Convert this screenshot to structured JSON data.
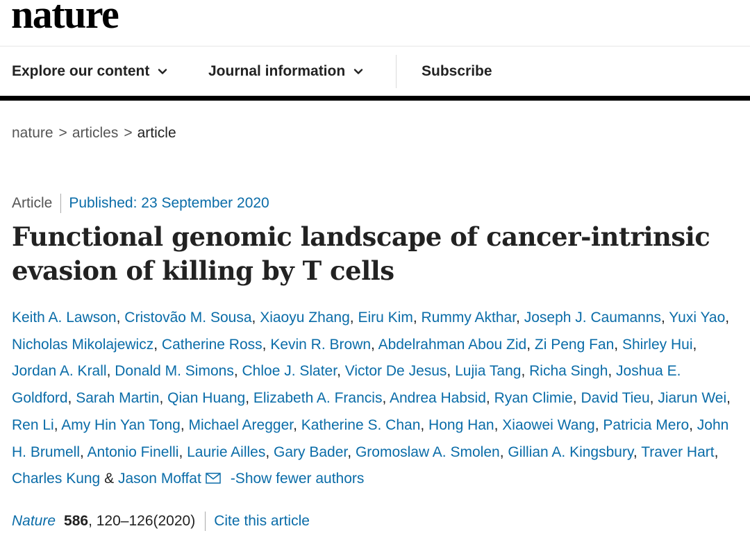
{
  "header": {
    "logo": "nature"
  },
  "nav": {
    "items": [
      {
        "label": "Explore our content",
        "has_dropdown": true
      },
      {
        "label": "Journal information",
        "has_dropdown": true
      },
      {
        "label": "Subscribe",
        "has_dropdown": false
      }
    ]
  },
  "breadcrumb": {
    "items": [
      "nature",
      "articles",
      "article"
    ],
    "separator": ">"
  },
  "article": {
    "type": "Article",
    "published": "Published: 23 September 2020",
    "title": "Functional genomic landscape of cancer-intrinsic evasion of killing by T cells",
    "authors": [
      "Keith A. Lawson",
      "Cristovão M. Sousa",
      "Xiaoyu Zhang",
      "Eiru Kim",
      "Rummy Akthar",
      "Joseph J. Caumanns",
      "Yuxi Yao",
      "Nicholas Mikolajewicz",
      "Catherine Ross",
      "Kevin R. Brown",
      "Abdelrahman Abou Zid",
      "Zi Peng Fan",
      "Shirley Hui",
      "Jordan A. Krall",
      "Donald M. Simons",
      "Chloe J. Slater",
      "Victor De Jesus",
      "Lujia Tang",
      "Richa Singh",
      "Joshua E. Goldford",
      "Sarah Martin",
      "Qian Huang",
      "Elizabeth A. Francis",
      "Andrea Habsid",
      "Ryan Climie",
      "David Tieu",
      "Jiarun Wei",
      "Ren Li",
      "Amy Hin Yan Tong",
      "Michael Aregger",
      "Katherine S. Chan",
      "Hong Han",
      "Xiaowei Wang",
      "Patricia Mero",
      "John H. Brumell",
      "Antonio Finelli",
      "Laurie Ailles",
      "Gary Bader",
      "Gromoslaw A. Smolen",
      "Gillian A. Kingsbury",
      "Traver Hart",
      "Charles Kung",
      "Jason Moffat"
    ],
    "last_author_joiner": "&",
    "show_fewer_label": "-Show fewer authors",
    "citation": {
      "journal": "Nature",
      "volume": "586",
      "pages_year": ", 120–126(2020)",
      "cite_label": "Cite this article"
    }
  },
  "icons": {
    "chevron": "chevron-down-icon",
    "mail": "envelope-icon"
  },
  "colors": {
    "link": "#0a6ca8",
    "text": "#222222",
    "muted": "#555555",
    "header_bar": "#000000"
  }
}
